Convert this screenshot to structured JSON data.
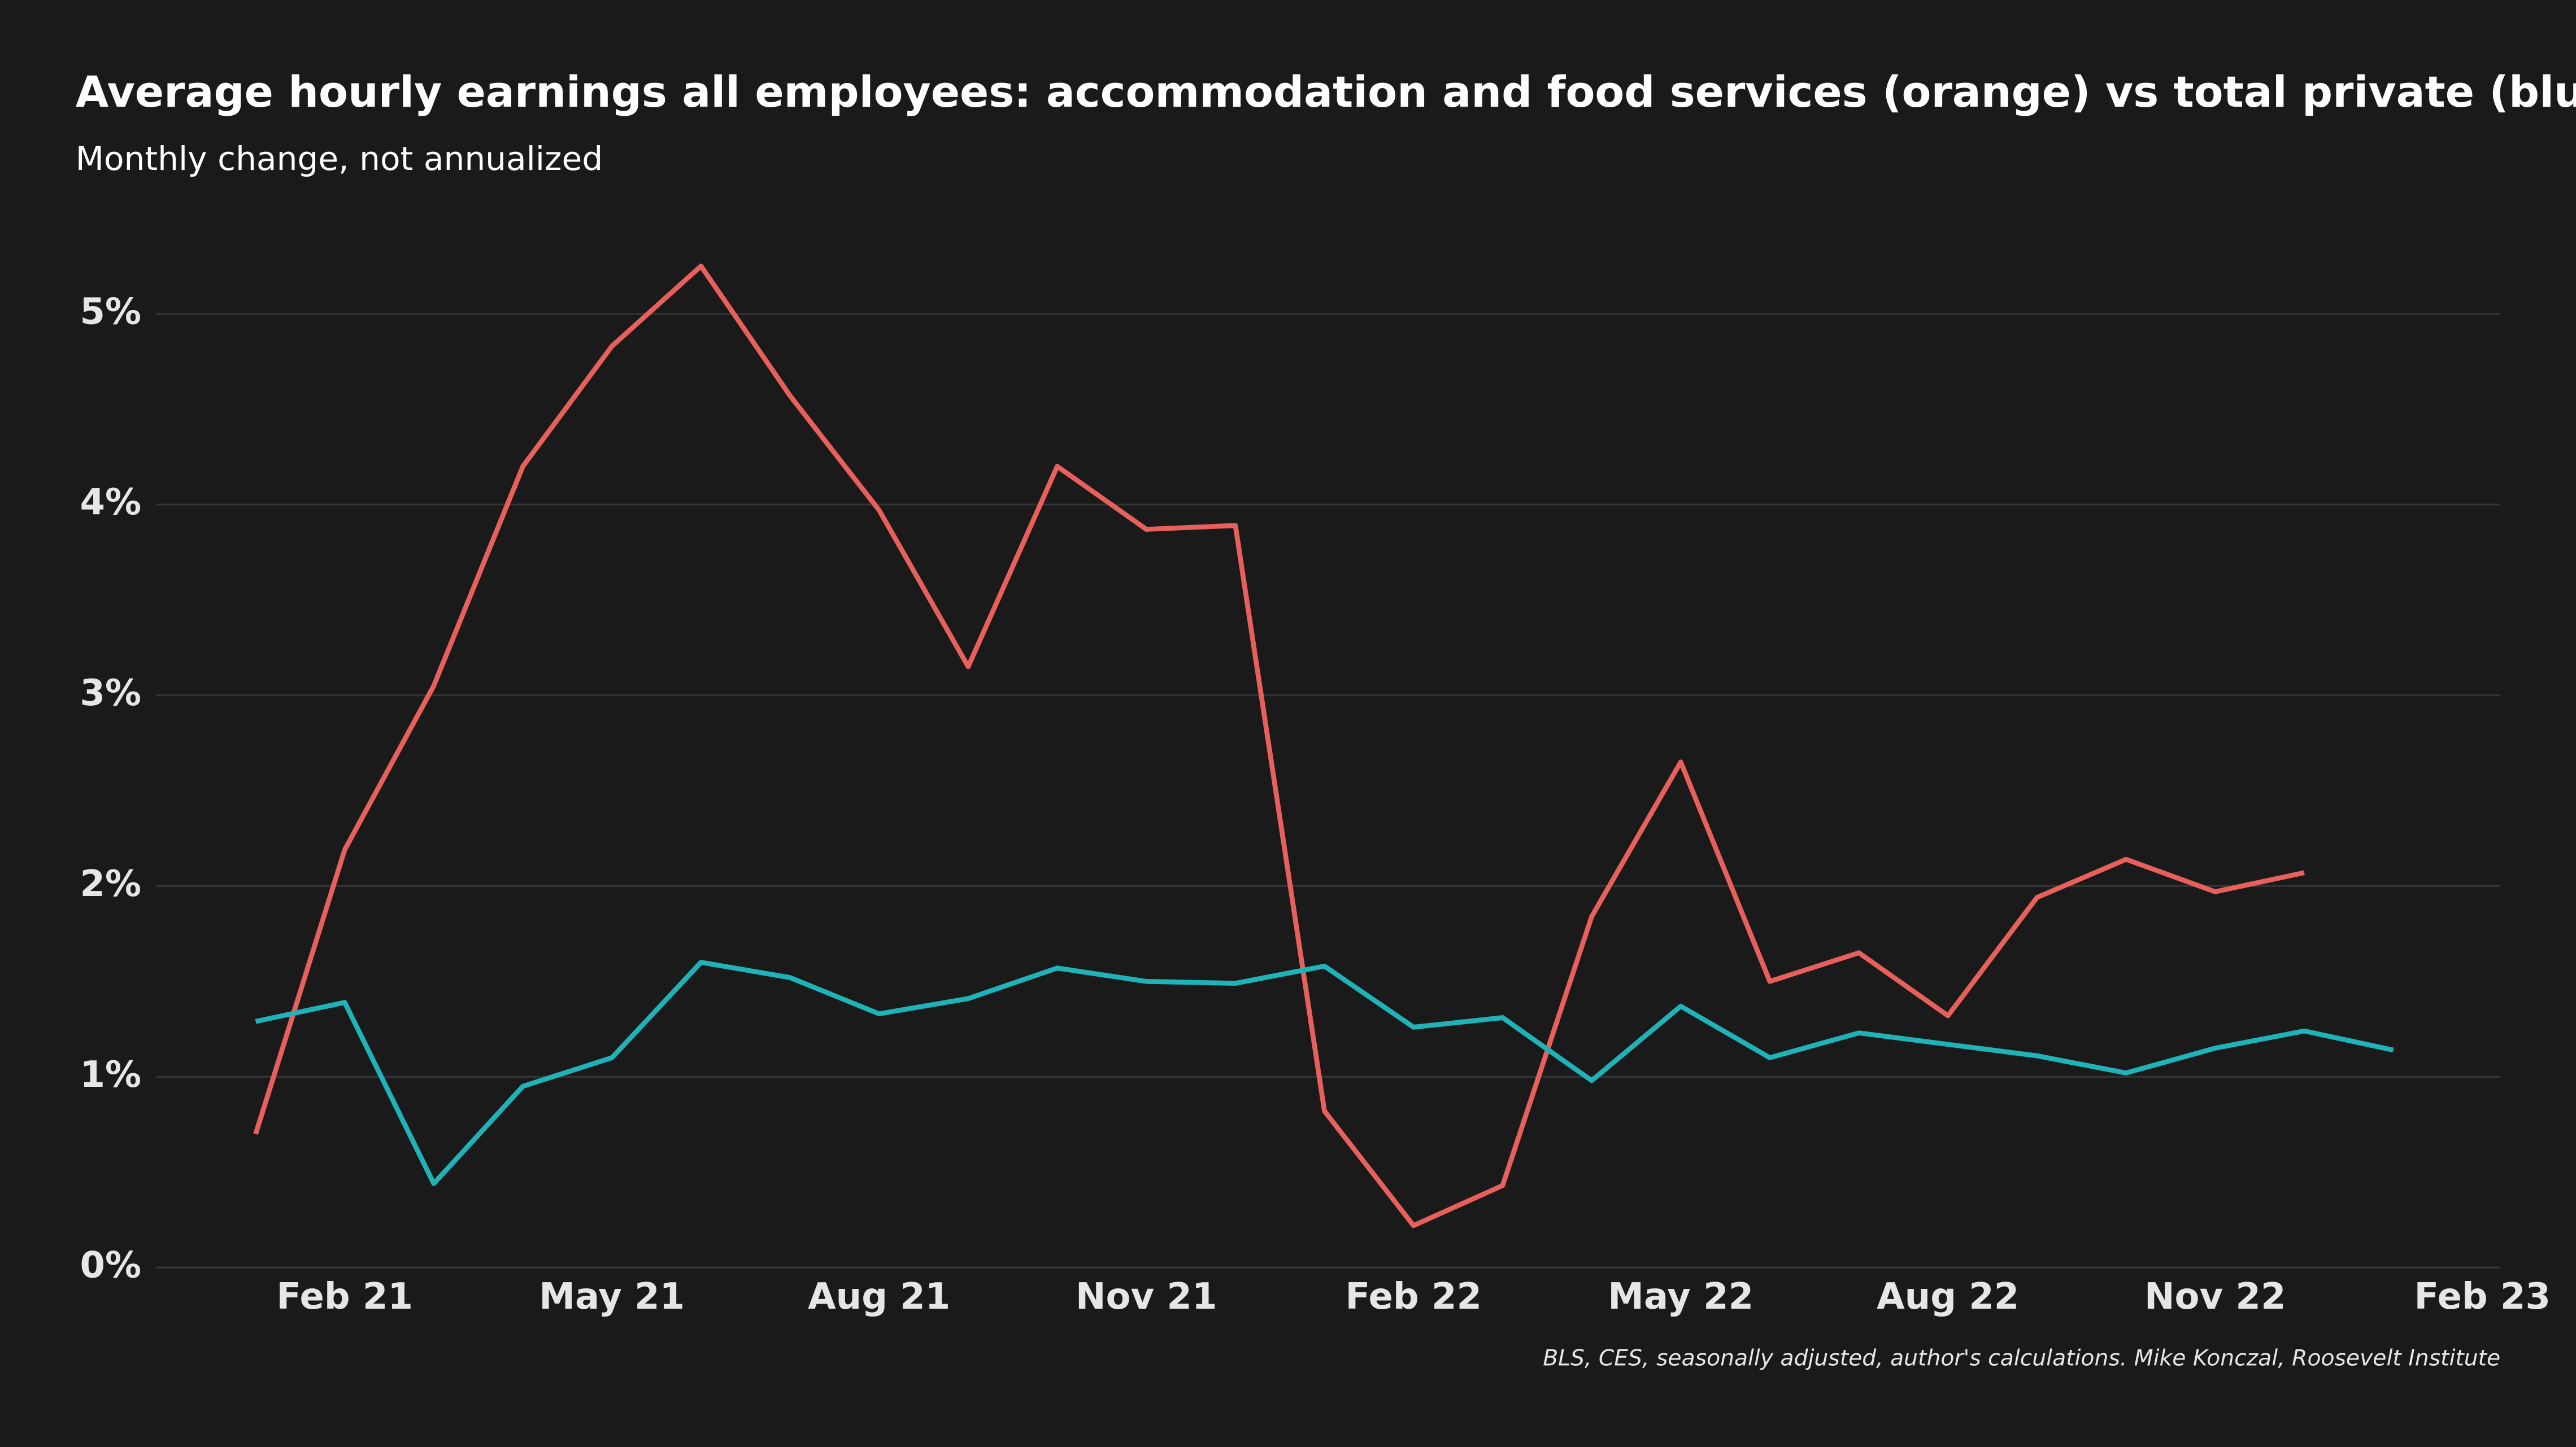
{
  "chart_data": {
    "type": "line",
    "title": "Average hourly earnings all employees: accommodation and food services (orange) vs total private (blue)",
    "subtitle": "Monthly change, not annualized",
    "source": "BLS, CES, seasonally adjusted, author's calculations. Mike Konczal, Roosevelt Institute",
    "x": [
      "2021-01",
      "2021-02",
      "2021-03",
      "2021-04",
      "2021-05",
      "2021-06",
      "2021-07",
      "2021-08",
      "2021-09",
      "2021-10",
      "2021-11",
      "2021-12",
      "2022-01",
      "2022-02",
      "2022-03",
      "2022-04",
      "2022-05",
      "2022-06",
      "2022-07",
      "2022-08",
      "2022-09",
      "2022-10",
      "2022-11",
      "2022-12",
      "2023-01"
    ],
    "series": [
      {
        "name": "accommodation and food services",
        "color": "#e8605c",
        "values": [
          0.7,
          2.19,
          3.05,
          4.2,
          4.83,
          5.25,
          4.57,
          3.97,
          3.15,
          4.2,
          3.87,
          3.89,
          0.82,
          0.22,
          0.43,
          1.84,
          2.65,
          1.5,
          1.65,
          1.32,
          1.94,
          2.14,
          1.97,
          2.07,
          null
        ]
      },
      {
        "name": "total private",
        "color": "#1fb3b8",
        "values": [
          1.29,
          1.39,
          0.44,
          0.95,
          1.1,
          1.6,
          1.52,
          1.33,
          1.41,
          1.57,
          1.5,
          1.49,
          1.58,
          1.26,
          1.31,
          0.98,
          1.37,
          1.1,
          1.23,
          1.17,
          1.11,
          1.02,
          1.15,
          1.24,
          1.14
        ]
      }
    ],
    "xlim": [
      "2020-12",
      "2023-02"
    ],
    "xticks": [
      {
        "value": "2021-02",
        "label": "Feb 21"
      },
      {
        "value": "2021-05",
        "label": "May 21"
      },
      {
        "value": "2021-08",
        "label": "Aug 21"
      },
      {
        "value": "2021-11",
        "label": "Nov 21"
      },
      {
        "value": "2022-02",
        "label": "Feb 22"
      },
      {
        "value": "2022-05",
        "label": "May 22"
      },
      {
        "value": "2022-08",
        "label": "Aug 22"
      },
      {
        "value": "2022-11",
        "label": "Nov 22"
      },
      {
        "value": "2023-02",
        "label": "Feb 23"
      }
    ],
    "ylim": [
      0,
      5.5
    ],
    "yticks": [
      {
        "value": 0,
        "label": "0%"
      },
      {
        "value": 1,
        "label": "1%"
      },
      {
        "value": 2,
        "label": "2%"
      },
      {
        "value": 3,
        "label": "3%"
      },
      {
        "value": 4,
        "label": "4%"
      },
      {
        "value": 5,
        "label": "5%"
      }
    ],
    "grid": true
  }
}
